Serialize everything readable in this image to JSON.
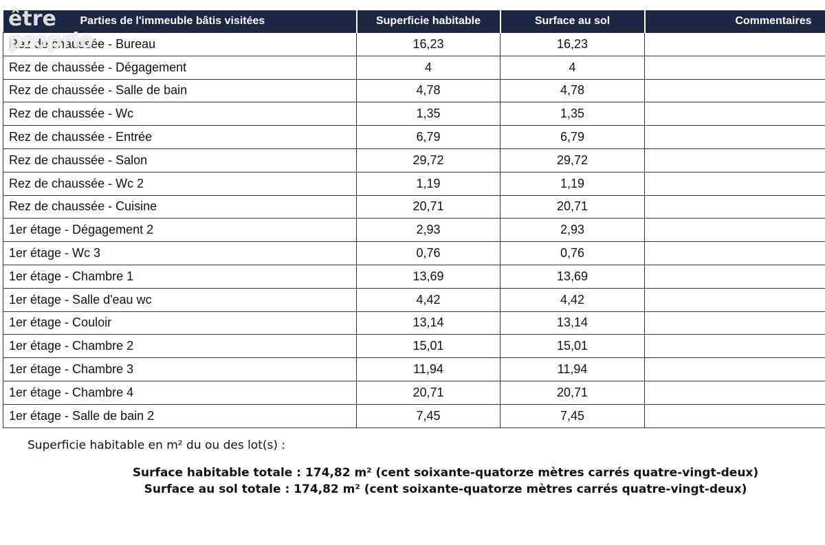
{
  "watermark": [
    "être",
    "proprio"
  ],
  "table": {
    "header": [
      "Parties de l'immeuble bâtis visitées",
      "Superficie habitable",
      "Surface au sol",
      "Commentaires"
    ],
    "rows": [
      [
        "Rez de chaussée - Bureau",
        "16,23",
        "16,23"
      ],
      [
        "Rez de chaussée - Dégagement",
        "4",
        "4"
      ],
      [
        "Rez de chaussée - Salle de bain",
        "4,78",
        "4,78"
      ],
      [
        "Rez de chaussée - Wc",
        "1,35",
        "1,35"
      ],
      [
        "Rez de chaussée - Entrée",
        "6,79",
        "6,79"
      ],
      [
        "Rez de chaussée - Salon",
        "29,72",
        "29,72"
      ],
      [
        "Rez de chaussée - Wc 2",
        "1,19",
        "1,19"
      ],
      [
        "Rez de chaussée - Cuisine",
        "20,71",
        "20,71"
      ],
      [
        "1er étage - Dégagement 2",
        "2,93",
        "2,93"
      ],
      [
        "1er étage - Wc 3",
        "0,76",
        "0,76"
      ],
      [
        "1er étage - Chambre 1",
        "13,69",
        "13,69"
      ],
      [
        "1er étage - Salle d'eau wc",
        "4,42",
        "4,42"
      ],
      [
        "1er étage - Couloir",
        "13,14",
        "13,14"
      ],
      [
        "1er étage - Chambre 2",
        "15,01",
        "15,01"
      ],
      [
        "1er étage - Chambre 3",
        "11,94",
        "11,94"
      ],
      [
        "1er étage - Chambre 4",
        "20,71",
        "20,71"
      ],
      [
        "1er étage - Salle de bain 2",
        "7,45",
        "7,45"
      ]
    ]
  },
  "footer": {
    "note": "Superficie habitable en m² du ou des lot(s) :",
    "total_habitable": "Surface habitable totale : 174,82 m² (cent soixante-quatorze mètres carrés quatre-vingt-deux)",
    "total_sol": "Surface au sol totale : 174,82 m² (cent soixante-quatorze mètres carrés quatre-vingt-deux)"
  }
}
